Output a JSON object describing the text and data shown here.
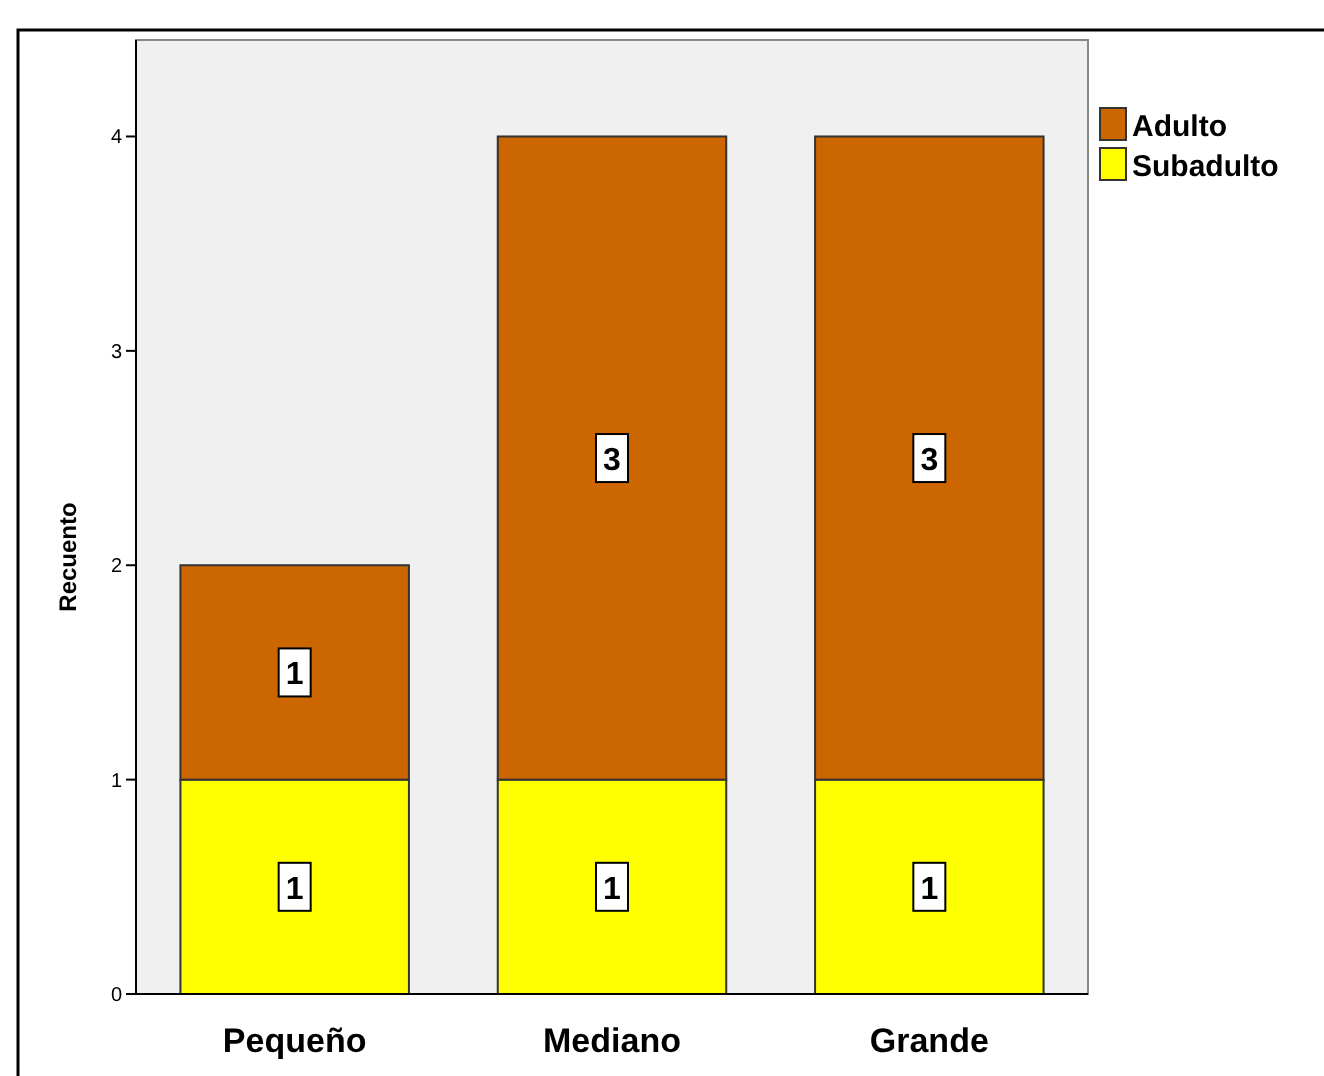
{
  "chart_data": {
    "type": "bar",
    "stacked": true,
    "ylabel": "Recuento",
    "categories": [
      "Pequeño",
      "Mediano",
      "Grande"
    ],
    "series": [
      {
        "name": "Subadulto",
        "color": "#ffff00",
        "values": [
          1,
          1,
          1
        ]
      },
      {
        "name": "Adulto",
        "color": "#cc6600",
        "values": [
          1,
          3,
          3
        ]
      }
    ],
    "ylim": [
      0,
      4.45
    ],
    "yticks": [
      0,
      1,
      2,
      3,
      4
    ],
    "data_labels": true,
    "legend": "right",
    "grid": false
  }
}
